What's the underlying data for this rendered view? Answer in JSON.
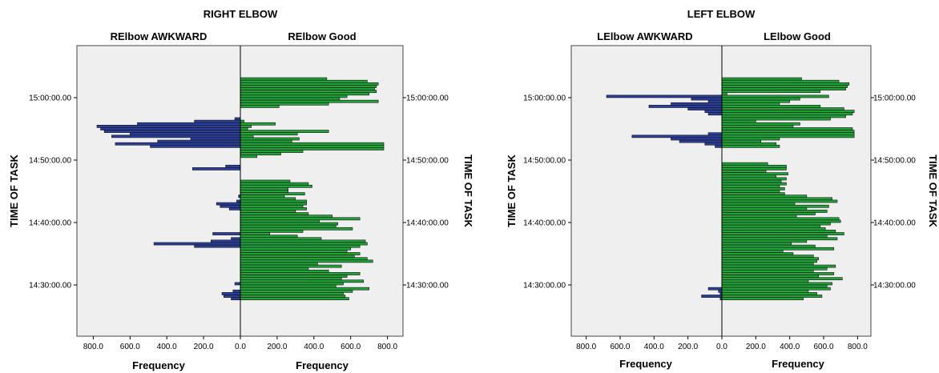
{
  "chart_data": [
    {
      "type": "bar",
      "orientation": "population-pyramid",
      "title": "RIGHT ELBOW",
      "left_group_label": "RElbow AWKWARD",
      "right_group_label": "RElbow Good",
      "xlabel": "Frequency",
      "ylabel": "TIME OF TASK",
      "x_ticks": [
        "800.0",
        "600.0",
        "400.0",
        "200.0",
        "0.0",
        "200.0",
        "400.0",
        "600.0",
        "800.0"
      ],
      "xlim": [
        0,
        880
      ],
      "y_ticks": [
        "15:00:00.00",
        "14:50:00.00",
        "14:40:00.00",
        "14:30:00.00"
      ],
      "y_tick_minutes": [
        0,
        10,
        20,
        30
      ],
      "colors": {
        "left": "#2b3f9a",
        "right": "#22a33a",
        "background": "#efefef"
      },
      "bins_minutes_before_15": [
        -3.0,
        -2.6,
        -2.2,
        -1.8,
        -1.4,
        -1.0,
        -0.6,
        -0.2,
        0.2,
        0.6,
        1.0,
        1.4,
        1.8,
        2.2,
        2.6,
        3.0,
        3.4,
        3.8,
        4.2,
        4.6,
        5.0,
        5.4,
        5.8,
        6.2,
        6.6,
        7.0,
        7.4,
        7.8,
        8.2,
        8.6,
        9.0,
        9.4,
        9.8,
        10.2,
        10.6,
        11.0,
        11.4,
        11.8,
        12.2,
        12.6,
        13.0,
        13.4,
        13.8,
        14.2,
        14.6,
        15.0,
        15.4,
        15.8,
        16.2,
        16.6,
        17.0,
        17.4,
        17.8,
        18.2,
        18.6,
        19.0,
        19.4,
        19.8,
        20.2,
        20.6,
        21.0,
        21.4,
        21.8,
        22.2,
        22.6,
        23.0,
        23.4,
        23.8,
        24.2,
        24.6,
        25.0,
        25.4,
        25.8,
        26.2,
        26.6,
        27.0,
        27.4,
        27.8,
        28.2,
        28.6,
        29.0,
        29.4,
        29.8,
        30.2,
        30.6,
        31.0,
        31.4,
        31.8,
        32.2
      ],
      "series": [
        {
          "name": "RElbow AWKWARD",
          "values": [
            0,
            0,
            0,
            0,
            0,
            0,
            0,
            0,
            0,
            0,
            0,
            0,
            0,
            0,
            0,
            0,
            30,
            250,
            560,
            780,
            760,
            740,
            600,
            700,
            270,
            450,
            680,
            490,
            0,
            0,
            0,
            0,
            0,
            0,
            0,
            80,
            260,
            0,
            0,
            0,
            0,
            0,
            0,
            0,
            0,
            0,
            0,
            10,
            0,
            20,
            130,
            110,
            60,
            0,
            0,
            0,
            0,
            0,
            0,
            0,
            0,
            0,
            150,
            0,
            50,
            160,
            470,
            250,
            0,
            0,
            0,
            0,
            0,
            0,
            0,
            0,
            0,
            0,
            0,
            0,
            0,
            0,
            30,
            0,
            0,
            40,
            100,
            90,
            50
          ]
        },
        {
          "name": "RElbow Good",
          "values": [
            470,
            690,
            750,
            740,
            730,
            740,
            700,
            580,
            540,
            750,
            480,
            210,
            0,
            0,
            0,
            0,
            0,
            20,
            190,
            60,
            40,
            480,
            310,
            70,
            320,
            280,
            780,
            780,
            780,
            340,
            220,
            90,
            0,
            0,
            0,
            0,
            0,
            0,
            0,
            0,
            0,
            270,
            370,
            390,
            260,
            260,
            350,
            240,
            300,
            360,
            360,
            340,
            360,
            300,
            370,
            500,
            650,
            430,
            530,
            520,
            610,
            340,
            160,
            310,
            440,
            680,
            690,
            650,
            600,
            580,
            650,
            620,
            690,
            720,
            420,
            550,
            370,
            480,
            650,
            580,
            550,
            670,
            560,
            520,
            700,
            610,
            560,
            570,
            590
          ]
        }
      ]
    },
    {
      "type": "bar",
      "orientation": "population-pyramid",
      "title": "LEFT ELBOW",
      "left_group_label": "LElbow AWKWARD",
      "right_group_label": "LElbow Good",
      "xlabel": "Frequency",
      "ylabel": "TIME OF TASK",
      "x_ticks": [
        "800.0",
        "600.0",
        "400.0",
        "200.0",
        "0.0",
        "200.0",
        "400.0",
        "600.0",
        "800.0"
      ],
      "xlim": [
        0,
        880
      ],
      "y_ticks": [
        "15:00:00.00",
        "14:50:00.00",
        "14:40:00.00",
        "14:30:00.00"
      ],
      "y_tick_minutes": [
        0,
        10,
        20,
        30
      ],
      "colors": {
        "left": "#2b3f9a",
        "right": "#22a33a",
        "background": "#efefef"
      },
      "bins_minutes_before_15": [
        -3.0,
        -2.6,
        -2.2,
        -1.8,
        -1.4,
        -1.0,
        -0.6,
        -0.2,
        0.2,
        0.6,
        1.0,
        1.4,
        1.8,
        2.2,
        2.6,
        3.0,
        3.4,
        3.8,
        4.2,
        4.6,
        5.0,
        5.4,
        5.8,
        6.2,
        6.6,
        7.0,
        7.4,
        7.8,
        8.2,
        8.6,
        9.0,
        9.4,
        9.8,
        10.2,
        10.6,
        11.0,
        11.4,
        11.8,
        12.2,
        12.6,
        13.0,
        13.4,
        13.8,
        14.2,
        14.6,
        15.0,
        15.4,
        15.8,
        16.2,
        16.6,
        17.0,
        17.4,
        17.8,
        18.2,
        18.6,
        19.0,
        19.4,
        19.8,
        20.2,
        20.6,
        21.0,
        21.4,
        21.8,
        22.2,
        22.6,
        23.0,
        23.4,
        23.8,
        24.2,
        24.6,
        25.0,
        25.4,
        25.8,
        26.2,
        26.6,
        27.0,
        27.4,
        27.8,
        28.2,
        28.6,
        29.0,
        29.4,
        29.8,
        30.2,
        30.6,
        31.0,
        31.4,
        31.8,
        32.2
      ],
      "series": [
        {
          "name": "LElbow AWKWARD",
          "values": [
            0,
            0,
            0,
            0,
            0,
            0,
            0,
            680,
            180,
            80,
            300,
            430,
            200,
            100,
            80,
            0,
            0,
            0,
            0,
            0,
            0,
            0,
            80,
            530,
            300,
            250,
            100,
            40,
            0,
            0,
            0,
            0,
            0,
            0,
            0,
            0,
            0,
            0,
            0,
            0,
            0,
            0,
            0,
            0,
            0,
            0,
            0,
            0,
            0,
            0,
            0,
            0,
            0,
            0,
            0,
            0,
            0,
            0,
            0,
            0,
            0,
            0,
            0,
            0,
            0,
            0,
            0,
            0,
            0,
            0,
            0,
            0,
            0,
            0,
            0,
            0,
            0,
            0,
            0,
            0,
            0,
            0,
            0,
            0,
            80,
            20,
            10,
            120,
            10
          ]
        },
        {
          "name": "LElbow Good",
          "values": [
            470,
            690,
            750,
            740,
            730,
            580,
            30,
            630,
            460,
            400,
            340,
            580,
            720,
            780,
            770,
            730,
            640,
            200,
            460,
            420,
            770,
            780,
            780,
            780,
            340,
            230,
            320,
            340,
            0,
            0,
            0,
            0,
            0,
            0,
            270,
            380,
            380,
            260,
            390,
            320,
            380,
            350,
            380,
            340,
            370,
            340,
            370,
            500,
            650,
            680,
            430,
            630,
            500,
            620,
            550,
            440,
            690,
            700,
            640,
            580,
            610,
            670,
            720,
            620,
            680,
            500,
            410,
            550,
            660,
            360,
            420,
            540,
            570,
            560,
            540,
            670,
            620,
            540,
            660,
            570,
            710,
            510,
            650,
            620,
            640,
            510,
            560,
            590,
            480
          ]
        }
      ]
    }
  ]
}
